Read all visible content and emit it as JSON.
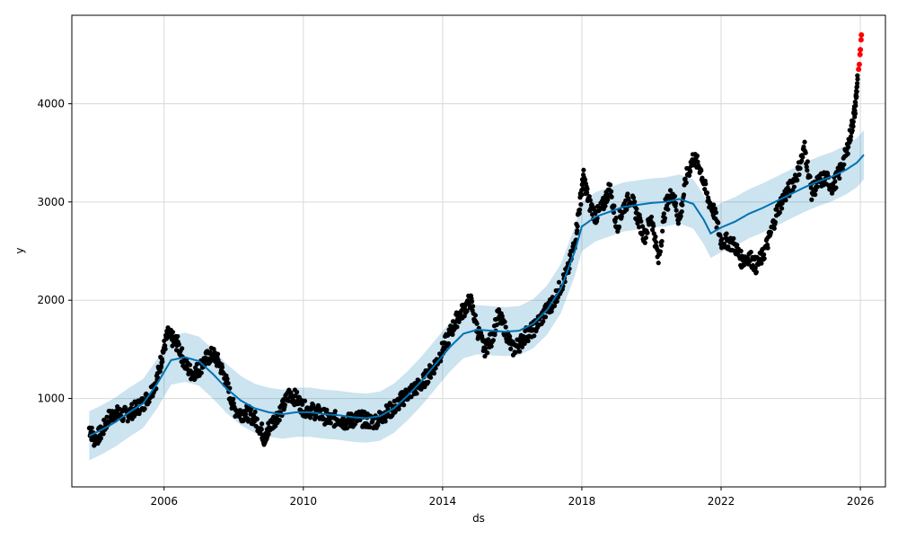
{
  "chart_data": {
    "type": "scatter",
    "title": "",
    "xlabel": "ds",
    "ylabel": "y",
    "xlim": [
      2003.35,
      2026.72
    ],
    "ylim": [
      100,
      4900
    ],
    "x_ticks": [
      {
        "value": 2006,
        "label": "2006"
      },
      {
        "value": 2010,
        "label": "2010"
      },
      {
        "value": 2014,
        "label": "2014"
      },
      {
        "value": 2018,
        "label": "2018"
      },
      {
        "value": 2022,
        "label": "2022"
      },
      {
        "value": 2026,
        "label": "2026"
      }
    ],
    "y_ticks": [
      {
        "value": 1000,
        "label": "1000"
      },
      {
        "value": 2000,
        "label": "2000"
      },
      {
        "value": 3000,
        "label": "3000"
      },
      {
        "value": 4000,
        "label": "4000"
      }
    ],
    "grid": true,
    "colors": {
      "observed": "#000000",
      "forecast_line": "#0072B2",
      "uncertainty_band": "#0072B2",
      "highlight_points": "#ff0000",
      "grid": "#d9d9d9"
    },
    "series": [
      {
        "role": "observed",
        "points": [
          [
            2003.85,
            700
          ],
          [
            2004.0,
            580
          ],
          [
            2004.2,
            650
          ],
          [
            2004.4,
            800
          ],
          [
            2004.6,
            850
          ],
          [
            2004.8,
            830
          ],
          [
            2005.0,
            850
          ],
          [
            2005.2,
            900
          ],
          [
            2005.4,
            950
          ],
          [
            2005.6,
            1050
          ],
          [
            2005.8,
            1200
          ],
          [
            2005.95,
            1450
          ],
          [
            2006.1,
            1650
          ],
          [
            2006.25,
            1600
          ],
          [
            2006.4,
            1550
          ],
          [
            2006.6,
            1350
          ],
          [
            2006.8,
            1250
          ],
          [
            2007.0,
            1300
          ],
          [
            2007.2,
            1400
          ],
          [
            2007.4,
            1450
          ],
          [
            2007.6,
            1350
          ],
          [
            2007.8,
            1150
          ],
          [
            2008.0,
            900
          ],
          [
            2008.2,
            850
          ],
          [
            2008.4,
            850
          ],
          [
            2008.6,
            800
          ],
          [
            2008.8,
            680
          ],
          [
            2008.9,
            560
          ],
          [
            2009.0,
            700
          ],
          [
            2009.2,
            800
          ],
          [
            2009.4,
            900
          ],
          [
            2009.6,
            1050
          ],
          [
            2009.8,
            1000
          ],
          [
            2010.0,
            900
          ],
          [
            2010.2,
            880
          ],
          [
            2010.4,
            860
          ],
          [
            2010.6,
            820
          ],
          [
            2010.8,
            780
          ],
          [
            2011.0,
            800
          ],
          [
            2011.2,
            760
          ],
          [
            2011.4,
            780
          ],
          [
            2011.6,
            800
          ],
          [
            2011.8,
            780
          ],
          [
            2012.0,
            760
          ],
          [
            2012.2,
            800
          ],
          [
            2012.4,
            860
          ],
          [
            2012.6,
            900
          ],
          [
            2012.8,
            980
          ],
          [
            2013.0,
            1050
          ],
          [
            2013.2,
            1100
          ],
          [
            2013.4,
            1150
          ],
          [
            2013.6,
            1250
          ],
          [
            2013.8,
            1350
          ],
          [
            2014.0,
            1500
          ],
          [
            2014.2,
            1650
          ],
          [
            2014.4,
            1800
          ],
          [
            2014.6,
            1900
          ],
          [
            2014.8,
            2000
          ],
          [
            2015.0,
            1700
          ],
          [
            2015.2,
            1500
          ],
          [
            2015.4,
            1600
          ],
          [
            2015.6,
            1850
          ],
          [
            2015.8,
            1700
          ],
          [
            2016.0,
            1500
          ],
          [
            2016.2,
            1550
          ],
          [
            2016.4,
            1650
          ],
          [
            2016.6,
            1700
          ],
          [
            2016.8,
            1800
          ],
          [
            2017.0,
            1900
          ],
          [
            2017.2,
            2000
          ],
          [
            2017.4,
            2150
          ],
          [
            2017.6,
            2300
          ],
          [
            2017.8,
            2600
          ],
          [
            2017.95,
            3000
          ],
          [
            2018.05,
            3250
          ],
          [
            2018.2,
            3000
          ],
          [
            2018.4,
            2850
          ],
          [
            2018.6,
            2950
          ],
          [
            2018.8,
            3150
          ],
          [
            2019.0,
            2750
          ],
          [
            2019.2,
            2950
          ],
          [
            2019.4,
            3050
          ],
          [
            2019.6,
            2850
          ],
          [
            2019.8,
            2650
          ],
          [
            2020.0,
            2850
          ],
          [
            2020.2,
            2400
          ],
          [
            2020.4,
            2950
          ],
          [
            2020.6,
            3100
          ],
          [
            2020.8,
            2800
          ],
          [
            2021.0,
            3250
          ],
          [
            2021.2,
            3450
          ],
          [
            2021.4,
            3350
          ],
          [
            2021.6,
            3050
          ],
          [
            2021.8,
            2900
          ],
          [
            2022.0,
            2600
          ],
          [
            2022.2,
            2600
          ],
          [
            2022.4,
            2550
          ],
          [
            2022.6,
            2400
          ],
          [
            2022.8,
            2450
          ],
          [
            2023.0,
            2350
          ],
          [
            2023.2,
            2450
          ],
          [
            2023.4,
            2650
          ],
          [
            2023.6,
            2900
          ],
          [
            2023.8,
            3050
          ],
          [
            2024.0,
            3150
          ],
          [
            2024.2,
            3300
          ],
          [
            2024.4,
            3550
          ],
          [
            2024.6,
            3100
          ],
          [
            2024.8,
            3200
          ],
          [
            2025.0,
            3250
          ],
          [
            2025.2,
            3150
          ],
          [
            2025.4,
            3300
          ],
          [
            2025.6,
            3500
          ],
          [
            2025.75,
            3750
          ],
          [
            2025.85,
            3950
          ],
          [
            2025.92,
            4250
          ]
        ]
      },
      {
        "role": "forecast",
        "points": [
          [
            2003.85,
            620
          ],
          [
            2004.2,
            680
          ],
          [
            2004.6,
            760
          ],
          [
            2005.0,
            860
          ],
          [
            2005.4,
            950
          ],
          [
            2005.8,
            1150
          ],
          [
            2006.2,
            1390
          ],
          [
            2006.6,
            1420
          ],
          [
            2007.0,
            1380
          ],
          [
            2007.4,
            1250
          ],
          [
            2007.8,
            1100
          ],
          [
            2008.2,
            980
          ],
          [
            2008.6,
            900
          ],
          [
            2009.0,
            860
          ],
          [
            2009.4,
            840
          ],
          [
            2009.8,
            860
          ],
          [
            2010.2,
            860
          ],
          [
            2010.6,
            840
          ],
          [
            2011.0,
            830
          ],
          [
            2011.4,
            810
          ],
          [
            2011.8,
            800
          ],
          [
            2012.2,
            820
          ],
          [
            2012.6,
            900
          ],
          [
            2013.0,
            1030
          ],
          [
            2013.4,
            1180
          ],
          [
            2013.8,
            1350
          ],
          [
            2014.2,
            1520
          ],
          [
            2014.6,
            1660
          ],
          [
            2015.0,
            1700
          ],
          [
            2015.4,
            1690
          ],
          [
            2015.8,
            1680
          ],
          [
            2016.2,
            1690
          ],
          [
            2016.6,
            1760
          ],
          [
            2017.0,
            1900
          ],
          [
            2017.4,
            2120
          ],
          [
            2017.8,
            2500
          ],
          [
            2018.0,
            2750
          ],
          [
            2018.4,
            2850
          ],
          [
            2018.8,
            2900
          ],
          [
            2019.2,
            2950
          ],
          [
            2019.6,
            2970
          ],
          [
            2020.0,
            2990
          ],
          [
            2020.4,
            3000
          ],
          [
            2020.8,
            3030
          ],
          [
            2021.2,
            2980
          ],
          [
            2021.5,
            2820
          ],
          [
            2021.7,
            2680
          ],
          [
            2022.0,
            2740
          ],
          [
            2022.4,
            2800
          ],
          [
            2022.8,
            2880
          ],
          [
            2023.2,
            2940
          ],
          [
            2023.6,
            3010
          ],
          [
            2024.0,
            3080
          ],
          [
            2024.4,
            3150
          ],
          [
            2024.8,
            3210
          ],
          [
            2025.2,
            3260
          ],
          [
            2025.6,
            3330
          ],
          [
            2025.9,
            3400
          ],
          [
            2026.05,
            3460
          ],
          [
            2026.1,
            3480
          ]
        ]
      },
      {
        "role": "highlighted",
        "points": [
          [
            2025.95,
            4350
          ],
          [
            2025.97,
            4400
          ],
          [
            2025.99,
            4500
          ],
          [
            2026.0,
            4550
          ],
          [
            2026.02,
            4650
          ],
          [
            2026.03,
            4700
          ]
        ]
      }
    ],
    "uncertainty_band_halfwidth": 250
  }
}
